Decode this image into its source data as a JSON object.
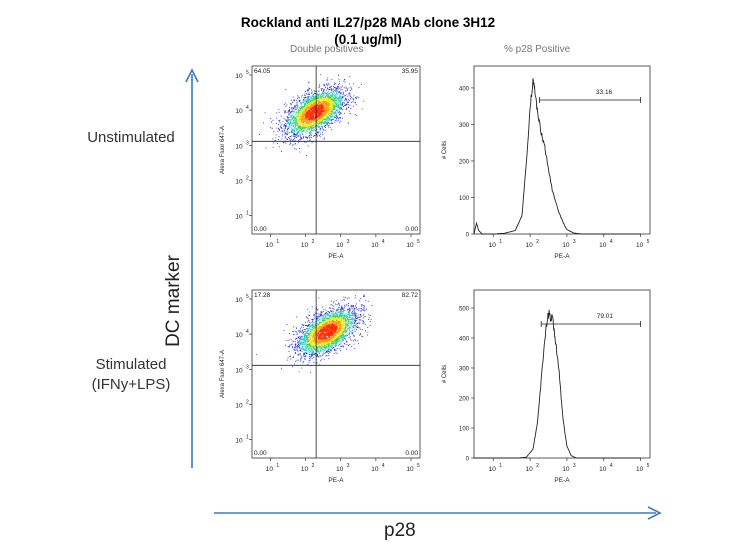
{
  "title_line1": "Rockland anti IL27/p28 MAb clone 3H12",
  "title_line2": "(0.1 ug/ml)",
  "column_headers": {
    "left": "Double positives",
    "right": "% p28 Positive"
  },
  "row_labels": {
    "top": "Unstimulated",
    "bottom_line1": "Stimulated",
    "bottom_line2": "(IFNy+LPS)"
  },
  "axis_big": {
    "x": "p28",
    "y": "DC marker"
  },
  "colors": {
    "arrow": "#3b78c3",
    "hist_line": "#222222",
    "dot_low": "#1f2bd0",
    "dot_high": "#ff2a00"
  },
  "chart_data": [
    {
      "type": "scatter",
      "name": "unstimulated-dotplot",
      "xlabel": "PE-A",
      "ylabel": "Alexa Fluor 647-A",
      "x_scale": "log",
      "y_scale": "log",
      "x_ticks": [
        "10^1",
        "10^2",
        "10^3",
        "10^4",
        "10^5"
      ],
      "y_ticks": [
        "10^1",
        "10^2",
        "10^3",
        "10^4",
        "10^5"
      ],
      "quadrants": {
        "top_left": "64.05",
        "top_right": "35.95",
        "bottom_left": "0.00",
        "bottom_right": "0.00"
      },
      "cluster_center": [
        180,
        9000
      ],
      "gate": [
        200,
        1300
      ]
    },
    {
      "type": "line",
      "name": "unstimulated-histogram",
      "xlabel": "PE-A",
      "ylabel": "# Cells",
      "x_scale": "log",
      "x_ticks": [
        "10^1",
        "10^2",
        "10^3",
        "10^4",
        "10^5"
      ],
      "y_ticks": [
        "0",
        "100",
        "200",
        "300",
        "400"
      ],
      "ylim": [
        0,
        460
      ],
      "gate_label": "33.16",
      "gate_range": [
        180,
        100000
      ],
      "curve": [
        [
          3,
          0
        ],
        [
          3.5,
          30
        ],
        [
          4,
          10
        ],
        [
          5,
          0
        ],
        [
          10,
          0
        ],
        [
          20,
          2
        ],
        [
          40,
          10
        ],
        [
          60,
          50
        ],
        [
          80,
          200
        ],
        [
          100,
          350
        ],
        [
          120,
          420
        ],
        [
          135,
          390
        ],
        [
          160,
          330
        ],
        [
          200,
          280
        ],
        [
          250,
          240
        ],
        [
          300,
          190
        ],
        [
          400,
          120
        ],
        [
          600,
          60
        ],
        [
          800,
          30
        ],
        [
          1000,
          12
        ],
        [
          1500,
          3
        ],
        [
          2500,
          0
        ],
        [
          100000,
          0
        ]
      ]
    },
    {
      "type": "scatter",
      "name": "stimulated-dotplot",
      "xlabel": "PE-A",
      "ylabel": "Alexa Fluor 647-A",
      "x_scale": "log",
      "y_scale": "log",
      "x_ticks": [
        "10^1",
        "10^2",
        "10^3",
        "10^4",
        "10^5"
      ],
      "y_ticks": [
        "10^1",
        "10^2",
        "10^3",
        "10^4",
        "10^5"
      ],
      "quadrants": {
        "top_left": "17.28",
        "top_right": "82.72",
        "bottom_left": "0.00",
        "bottom_right": "0.00"
      },
      "cluster_center": [
        400,
        12000
      ],
      "gate": [
        200,
        1300
      ]
    },
    {
      "type": "line",
      "name": "stimulated-histogram",
      "xlabel": "PE-A",
      "ylabel": "# Cells",
      "x_scale": "log",
      "x_ticks": [
        "10^1",
        "10^2",
        "10^3",
        "10^4",
        "10^5"
      ],
      "y_ticks": [
        "0",
        "100",
        "200",
        "300",
        "400",
        "500"
      ],
      "ylim": [
        0,
        560
      ],
      "gate_label": "79.01",
      "gate_range": [
        200,
        100000
      ],
      "curve": [
        [
          3,
          0
        ],
        [
          50,
          0
        ],
        [
          80,
          3
        ],
        [
          120,
          30
        ],
        [
          160,
          120
        ],
        [
          200,
          260
        ],
        [
          250,
          400
        ],
        [
          300,
          470
        ],
        [
          330,
          490
        ],
        [
          360,
          460
        ],
        [
          400,
          470
        ],
        [
          450,
          420
        ],
        [
          500,
          380
        ],
        [
          600,
          300
        ],
        [
          700,
          200
        ],
        [
          800,
          120
        ],
        [
          1000,
          40
        ],
        [
          1300,
          8
        ],
        [
          1800,
          0
        ],
        [
          100000,
          0
        ]
      ]
    }
  ]
}
